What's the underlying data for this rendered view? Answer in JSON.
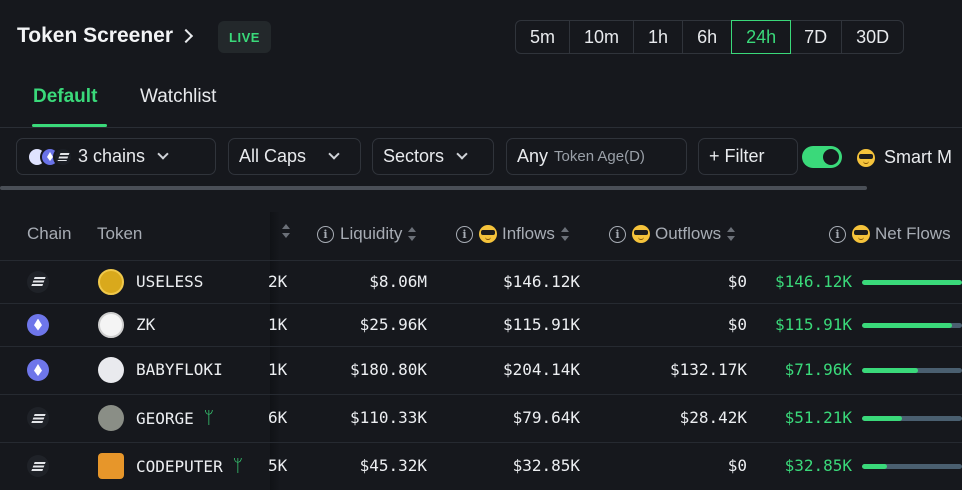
{
  "header": {
    "title": "Token Screener",
    "live_badge": "LIVE"
  },
  "timeframes": [
    {
      "label": "5m",
      "active": false
    },
    {
      "label": "10m",
      "active": false
    },
    {
      "label": "1h",
      "active": false
    },
    {
      "label": "6h",
      "active": false
    },
    {
      "label": "24h",
      "active": true
    },
    {
      "label": "7D",
      "active": false
    },
    {
      "label": "30D",
      "active": false
    }
  ],
  "tabs": {
    "default": "Default",
    "watchlist": "Watchlist",
    "active": "Default"
  },
  "filters": {
    "chains": "3 chains",
    "caps": "All Caps",
    "sectors": "Sectors",
    "age_value": "Any",
    "age_label": "Token Age(D)",
    "add_filter": "+ Filter",
    "smart_toggle_on": true,
    "smart_label": "Smart M"
  },
  "table": {
    "columns": {
      "chain": "Chain",
      "token": "Token",
      "liquidity": "Liquidity",
      "inflows": "Inflows",
      "outflows": "Outflows",
      "net_flows": "Net Flows"
    },
    "rows": [
      {
        "chain": "solana",
        "token": "USELESS",
        "partial": "2K",
        "liquidity": "$8.06M",
        "inflows": "$146.12K",
        "outflows": "$0",
        "net_flows": "$146.12K",
        "net_ratio": 1.0,
        "new": false,
        "logo": "useless-logo-icon"
      },
      {
        "chain": "ethereum",
        "token": "ZK",
        "partial": "1K",
        "liquidity": "$25.96K",
        "inflows": "$115.91K",
        "outflows": "$0",
        "net_flows": "$115.91K",
        "net_ratio": 0.9,
        "new": false,
        "logo": "zk-logo-icon"
      },
      {
        "chain": "ethereum",
        "token": "BABYFLOKI",
        "partial": "1K",
        "liquidity": "$180.80K",
        "inflows": "$204.14K",
        "outflows": "$132.17K",
        "net_flows": "$71.96K",
        "net_ratio": 0.56,
        "new": false,
        "logo": "babyfloki-logo-icon"
      },
      {
        "chain": "solana",
        "token": "GEORGE",
        "partial": "6K",
        "liquidity": "$110.33K",
        "inflows": "$79.64K",
        "outflows": "$28.42K",
        "net_flows": "$51.21K",
        "net_ratio": 0.4,
        "new": true,
        "logo": "george-logo-icon"
      },
      {
        "chain": "solana",
        "token": "CODEPUTER",
        "partial": "5K",
        "liquidity": "$45.32K",
        "inflows": "$32.85K",
        "outflows": "$0",
        "net_flows": "$32.85K",
        "net_ratio": 0.25,
        "new": true,
        "logo": "codeputer-logo-icon"
      }
    ]
  },
  "colors": {
    "accent": "#3ad97a",
    "background": "#16181d",
    "bar_track": "#4a5f70"
  }
}
